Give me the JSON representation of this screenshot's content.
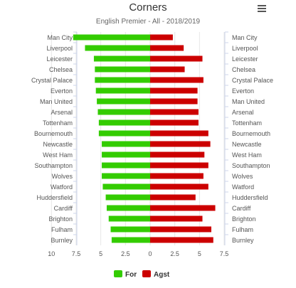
{
  "chart_data": {
    "type": "bar",
    "orientation": "horizontal",
    "title": "Corners",
    "subtitle": "English Premier - All - 2018/2019",
    "categories": [
      "Man City",
      "Liverpool",
      "Leicester",
      "Chelsea",
      "Crystal Palace",
      "Everton",
      "Man United",
      "Arsenal",
      "Tottenham",
      "Bournemouth",
      "Newcastle",
      "West Ham",
      "Southampton",
      "Wolves",
      "Watford",
      "Huddersfield",
      "Cardiff",
      "Brighton",
      "Fulham",
      "Burnley"
    ],
    "series": [
      {
        "name": "For",
        "color": "#33cc00",
        "values": [
          7.8,
          6.6,
          5.7,
          5.6,
          5.6,
          5.5,
          5.4,
          5.3,
          5.2,
          5.2,
          4.9,
          4.9,
          4.9,
          4.9,
          4.8,
          4.5,
          4.4,
          4.2,
          4.0,
          3.9
        ]
      },
      {
        "name": "Agst",
        "color": "#cc0000",
        "values": [
          2.3,
          3.4,
          5.3,
          3.5,
          5.4,
          4.8,
          4.8,
          4.9,
          4.9,
          5.9,
          6.1,
          5.5,
          5.9,
          5.4,
          5.9,
          4.6,
          6.6,
          5.3,
          6.2,
          6.4
        ]
      }
    ],
    "xaxis": {
      "ticks": [
        "10",
        "7.5",
        "5",
        "2.5",
        "0",
        "2.5",
        "5",
        "7.5"
      ]
    },
    "legend": "bottom-center"
  }
}
